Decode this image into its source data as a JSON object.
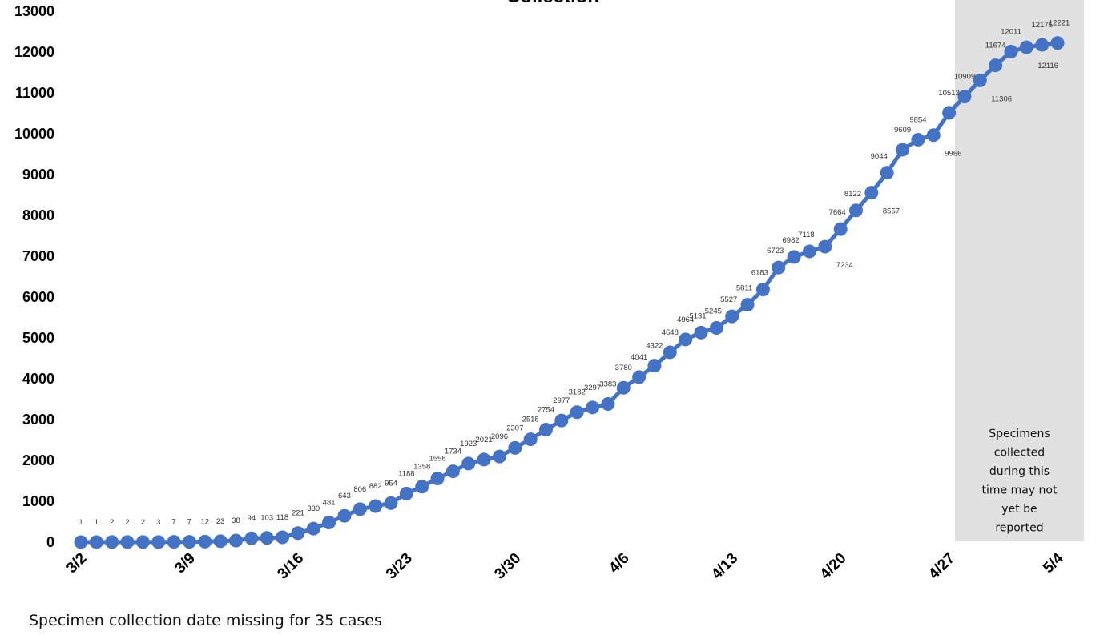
{
  "chart_data": {
    "type": "line",
    "title": "Collection",
    "footnote": "Specimen collection date missing for 35 cases",
    "shaded_note": "Specimens collected during this time may not yet be reported",
    "ylim": [
      0,
      13000
    ],
    "y_ticks": [
      0,
      1000,
      2000,
      3000,
      4000,
      5000,
      6000,
      7000,
      8000,
      9000,
      10000,
      11000,
      12000,
      13000
    ],
    "x_tick_labels": [
      "3/2",
      "3/9",
      "3/16",
      "3/23",
      "3/30",
      "4/6",
      "4/13",
      "4/20",
      "4/27",
      "5/4"
    ],
    "x_tick_index": [
      0,
      7,
      14,
      21,
      28,
      35,
      42,
      49,
      56,
      63
    ],
    "shaded_from_index": 57,
    "line_color": "#4472c4",
    "shade_color": "#e1e1e1",
    "grid": false,
    "dates": [
      "3/2",
      "3/3",
      "3/4",
      "3/5",
      "3/6",
      "3/7",
      "3/8",
      "3/9",
      "3/10",
      "3/11",
      "3/12",
      "3/13",
      "3/14",
      "3/15",
      "3/16",
      "3/17",
      "3/18",
      "3/19",
      "3/20",
      "3/21",
      "3/22",
      "3/23",
      "3/24",
      "3/25",
      "3/26",
      "3/27",
      "3/28",
      "3/29",
      "3/30",
      "3/31",
      "4/1",
      "4/2",
      "4/3",
      "4/4",
      "4/5",
      "4/6",
      "4/7",
      "4/8",
      "4/9",
      "4/10",
      "4/11",
      "4/12",
      "4/13",
      "4/14",
      "4/15",
      "4/16",
      "4/17",
      "4/18",
      "4/19",
      "4/20",
      "4/21",
      "4/22",
      "4/23",
      "4/24",
      "4/25",
      "4/26",
      "4/27",
      "4/28",
      "4/29",
      "4/30",
      "5/1",
      "5/2",
      "5/3",
      "5/4"
    ],
    "values": [
      1,
      1,
      2,
      2,
      2,
      3,
      7,
      7,
      12,
      23,
      38,
      94,
      103,
      118,
      221,
      330,
      481,
      643,
      806,
      882,
      954,
      1188,
      1358,
      1558,
      1734,
      1923,
      2021,
      2096,
      2307,
      2518,
      2754,
      2977,
      3182,
      3297,
      3383,
      3780,
      4041,
      4322,
      4648,
      4964,
      5131,
      5245,
      5527,
      5811,
      6183,
      6723,
      6982,
      7118,
      7234,
      7664,
      8122,
      8557,
      9044,
      9609,
      9854,
      9966,
      10513,
      10909,
      11306,
      11674,
      12011,
      12116,
      12175,
      12221
    ]
  }
}
